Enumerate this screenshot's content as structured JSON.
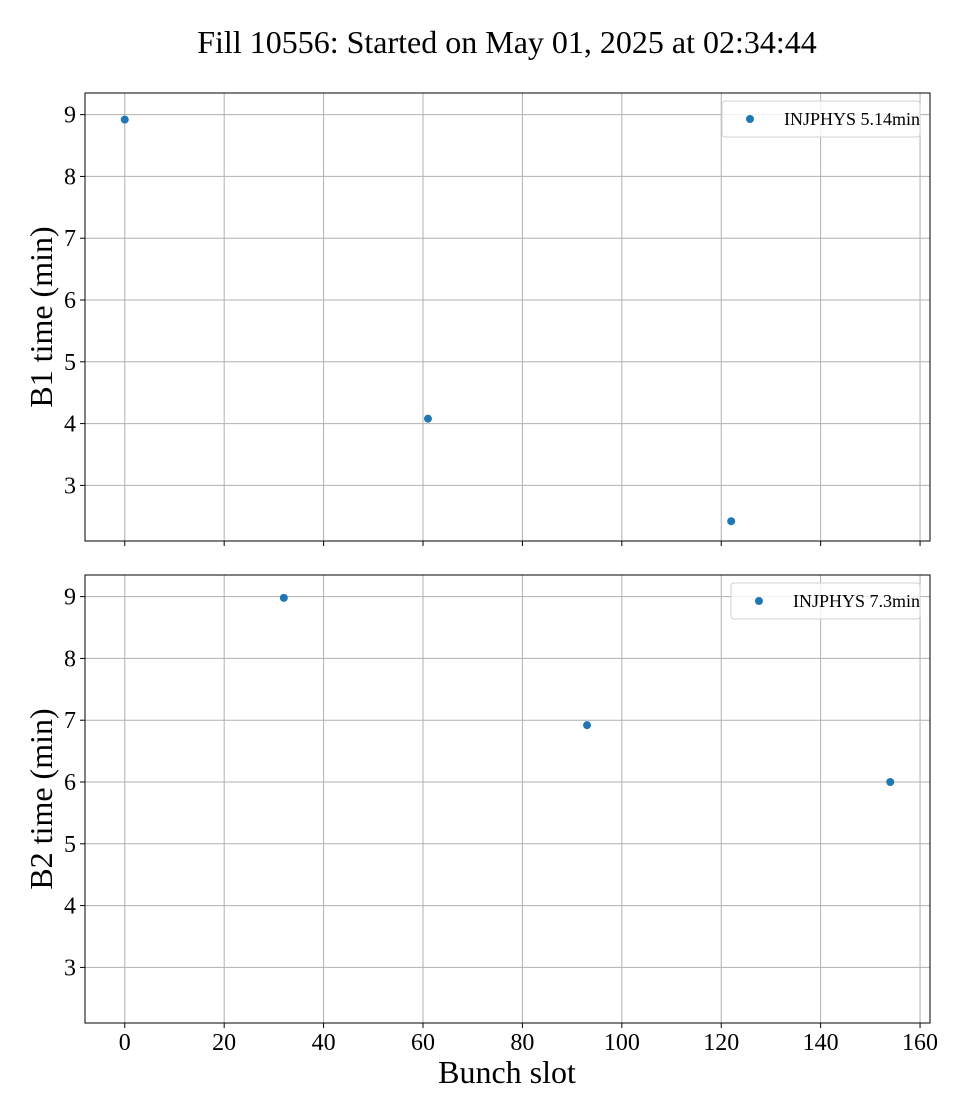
{
  "chart_data": {
    "type": "scatter",
    "title": "Fill 10556: Started on May 01, 2025 at 02:34:44",
    "xlabel": "Bunch slot",
    "xlim": [
      -8,
      162
    ],
    "xticks": [
      0,
      20,
      40,
      60,
      80,
      100,
      120,
      140,
      160
    ],
    "grid": true,
    "marker_color": "#1f77b4",
    "panels": [
      {
        "ylabel": "B1 time (min)",
        "ylim": [
          2.1,
          9.35
        ],
        "yticks": [
          3,
          4,
          5,
          6,
          7,
          8,
          9
        ],
        "show_xtick_labels": false,
        "legend_position": "upper right",
        "series": [
          {
            "name": "INJPHYS 5.14min",
            "x": [
              0,
              61,
              122
            ],
            "y": [
              8.92,
              4.08,
              2.42
            ]
          }
        ]
      },
      {
        "ylabel": "B2 time (min)",
        "ylim": [
          2.1,
          9.35
        ],
        "yticks": [
          3,
          4,
          5,
          6,
          7,
          8,
          9
        ],
        "show_xtick_labels": true,
        "legend_position": "upper right",
        "series": [
          {
            "name": "INJPHYS 7.3min",
            "x": [
              32,
              93,
              154
            ],
            "y": [
              8.98,
              6.92,
              6.0
            ]
          }
        ]
      }
    ]
  }
}
